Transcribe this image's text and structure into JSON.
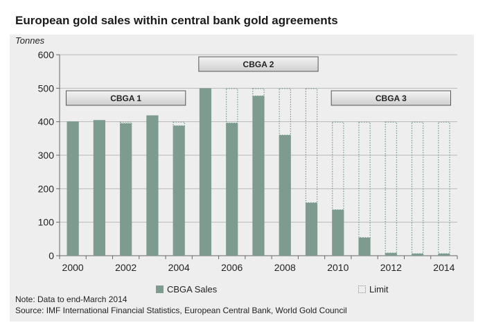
{
  "title": "European gold sales within central bank gold agreements",
  "note": "Note: Data to end-March 2014",
  "source": "Source: IMF International Financial Statistics, European Central Bank, World Gold Council",
  "chart_data": {
    "type": "bar",
    "ylabel": "Tonnes",
    "ylim": [
      0,
      600
    ],
    "yticks": [
      0,
      100,
      200,
      300,
      400,
      500,
      600
    ],
    "categories": [
      "2000",
      "2001",
      "2002",
      "2003",
      "2004",
      "2005",
      "2006",
      "2007",
      "2008",
      "2009",
      "2010",
      "2011",
      "2012",
      "2013",
      "2014"
    ],
    "xtick_labels": [
      "2000",
      "2002",
      "2004",
      "2006",
      "2008",
      "2010",
      "2012",
      "2014"
    ],
    "series": [
      {
        "name": "CBGA Sales",
        "style": "solid",
        "color": "#7d9b8e",
        "values": [
          401,
          405,
          395,
          419,
          388,
          500,
          396,
          477,
          360,
          158,
          137,
          54,
          8,
          6,
          6
        ]
      },
      {
        "name": "Limit",
        "style": "dotted-outline",
        "color": "#6b9a86",
        "values": [
          400,
          400,
          400,
          400,
          400,
          500,
          500,
          500,
          500,
          500,
          400,
          400,
          400,
          400,
          400
        ]
      }
    ],
    "agreements": [
      {
        "label": "CBGA 1",
        "start": "2000",
        "end": "2004"
      },
      {
        "label": "CBGA 2",
        "start": "2005",
        "end": "2009"
      },
      {
        "label": "CBGA 3",
        "start": "2010",
        "end": "2014"
      }
    ],
    "grid": true,
    "legend_position": "bottom"
  }
}
